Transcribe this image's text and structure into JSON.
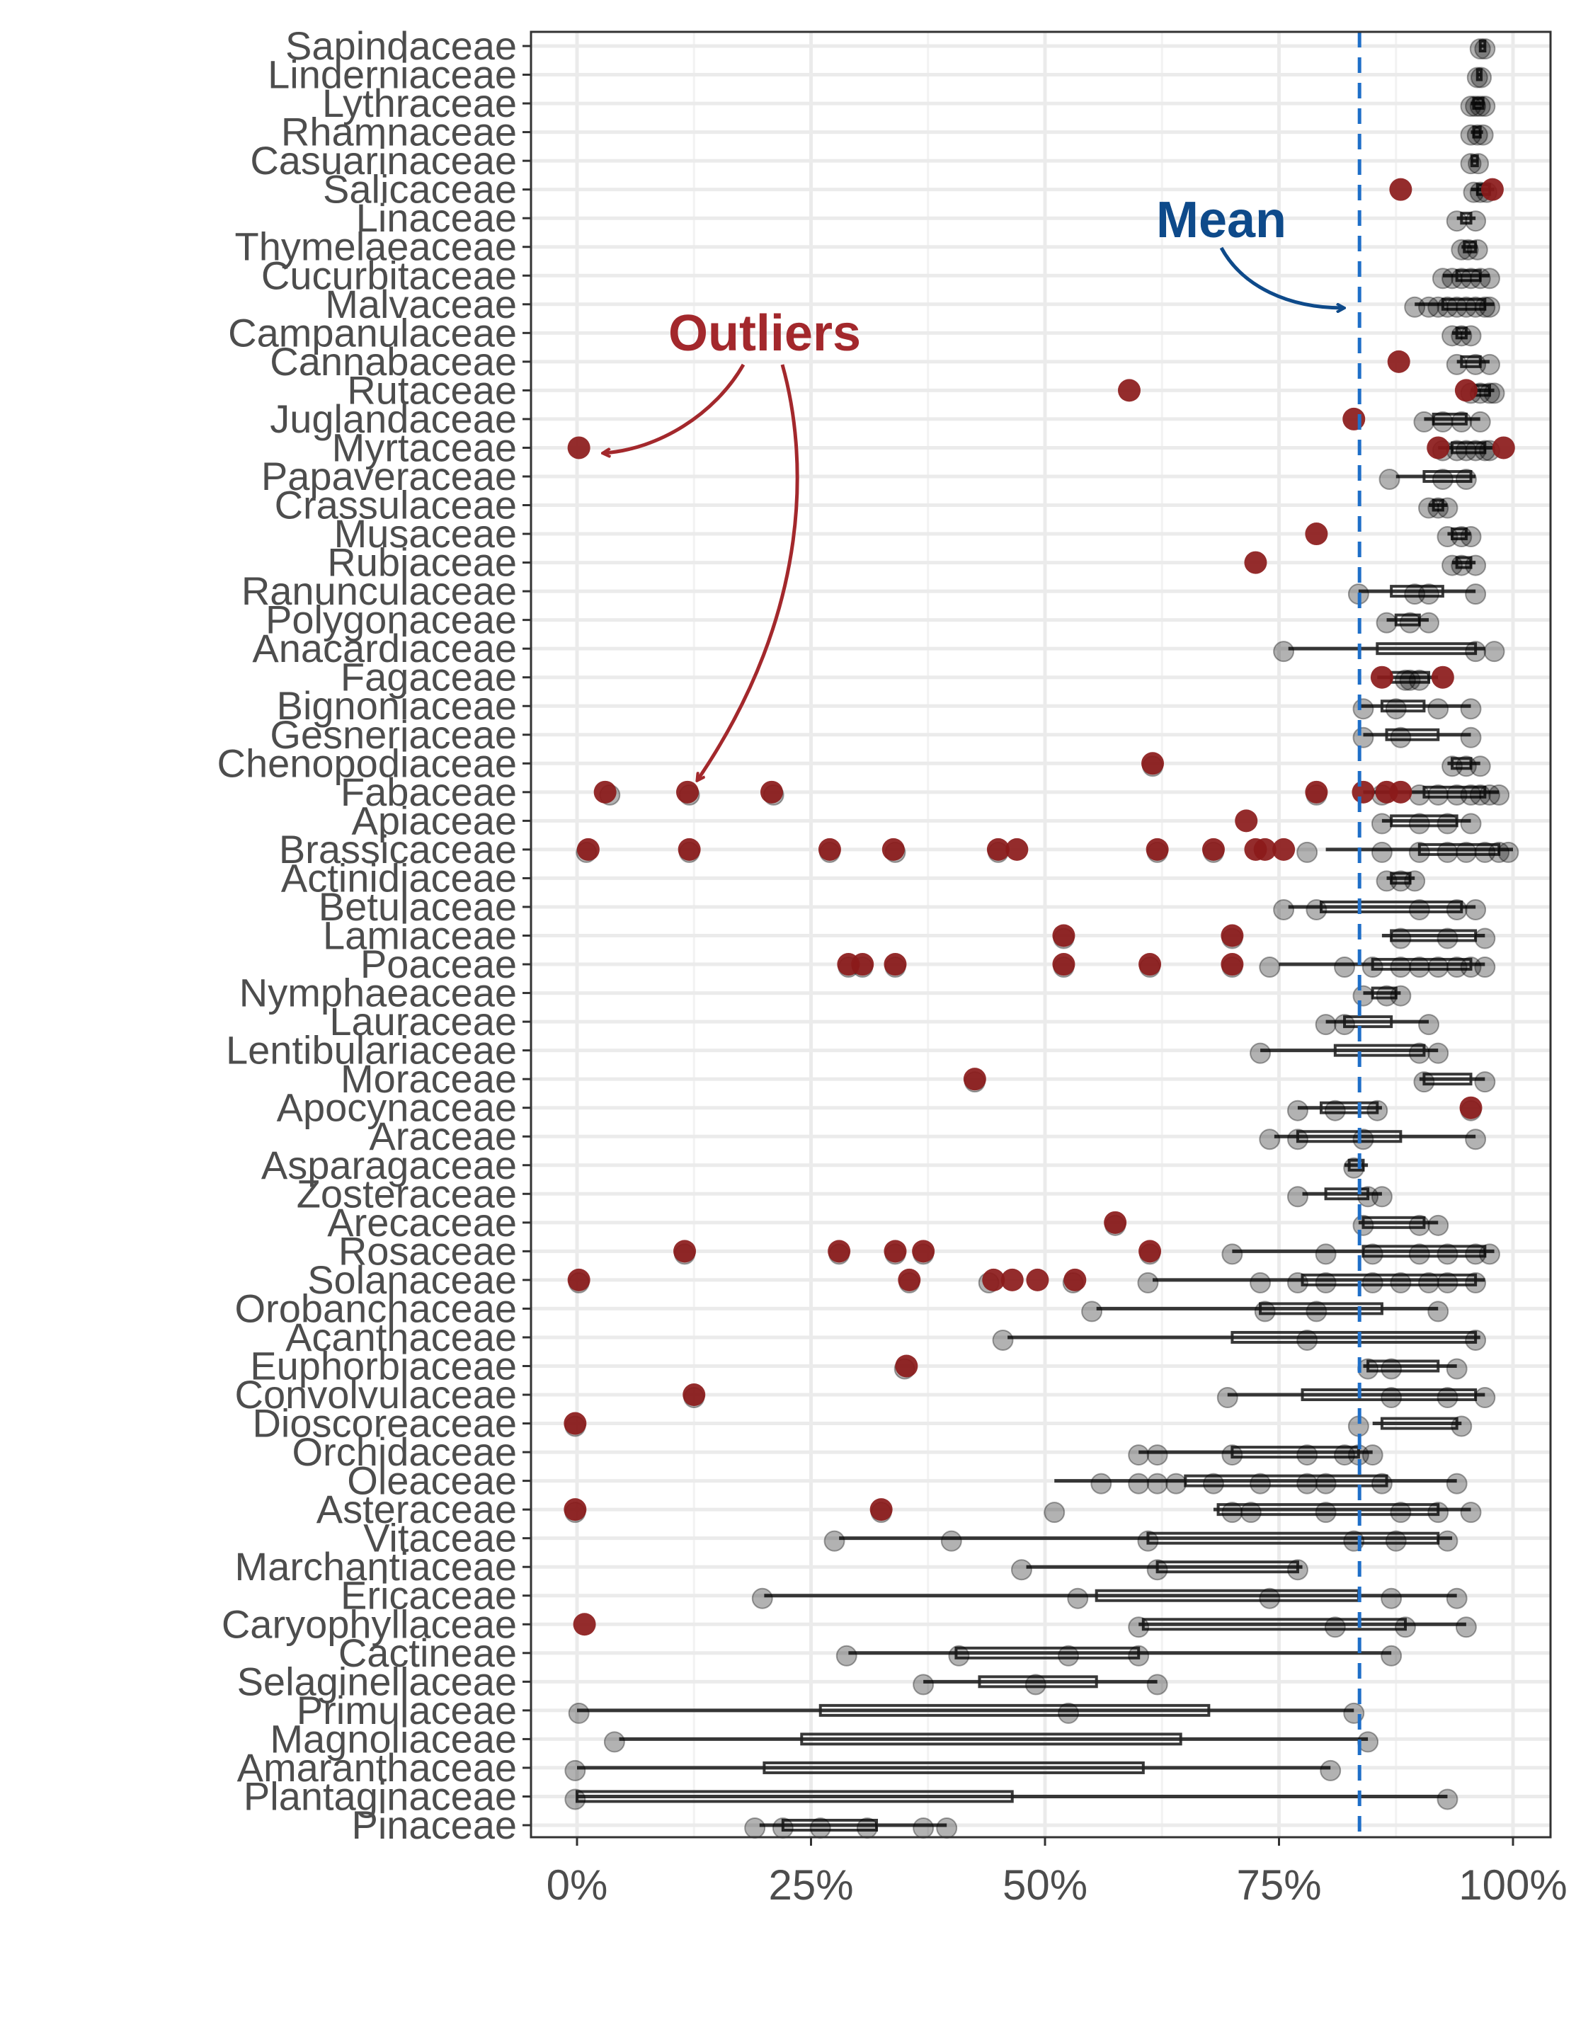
{
  "chart_data": {
    "type": "scatter",
    "orientation": "horizontal",
    "title": "",
    "xlabel": "",
    "ylabel": "",
    "xlim": [
      -0.05,
      1.04
    ],
    "x_ticks": [
      0,
      0.25,
      0.5,
      0.75,
      1.0
    ],
    "x_tick_labels": [
      "0%",
      "25%",
      "50%",
      "75%",
      "100%"
    ],
    "grid": true,
    "mean": 0.836,
    "colors": {
      "point": "#000000",
      "outlier": "#8b1a1a",
      "mean_line": "#1f6fc8",
      "outlier_annotation": "#a3282c",
      "mean_annotation": "#0e4a8a"
    },
    "annotations": [
      {
        "text": "Outliers",
        "color": "#a3282c"
      },
      {
        "text": "Mean",
        "color": "#0e4a8a"
      }
    ],
    "families": [
      {
        "name": "Sapindaceae",
        "min": 0.965,
        "q1": 0.965,
        "q3": 0.97,
        "max": 0.97,
        "points": [
          0.965,
          0.97
        ],
        "outliers": []
      },
      {
        "name": "Linderniaceae",
        "min": 0.962,
        "q1": 0.962,
        "q3": 0.966,
        "max": 0.966,
        "points": [
          0.962,
          0.966
        ],
        "outliers": []
      },
      {
        "name": "Lythraceae",
        "min": 0.955,
        "q1": 0.958,
        "q3": 0.968,
        "max": 0.97,
        "points": [
          0.955,
          0.96,
          0.965,
          0.97
        ],
        "outliers": []
      },
      {
        "name": "Rhamnaceae",
        "min": 0.955,
        "q1": 0.958,
        "q3": 0.965,
        "max": 0.968,
        "points": [
          0.955,
          0.962,
          0.968
        ],
        "outliers": []
      },
      {
        "name": "Casuarinaceae",
        "min": 0.955,
        "q1": 0.956,
        "q3": 0.962,
        "max": 0.963,
        "points": [
          0.955,
          0.963
        ],
        "outliers": []
      },
      {
        "name": "Salicaceae",
        "min": 0.955,
        "q1": 0.962,
        "q3": 0.975,
        "max": 0.98,
        "points": [
          0.958,
          0.965,
          0.972
        ],
        "outliers": [
          0.88,
          0.978
        ]
      },
      {
        "name": "Linaceae",
        "min": 0.94,
        "q1": 0.945,
        "q3": 0.955,
        "max": 0.96,
        "points": [
          0.94,
          0.96
        ],
        "outliers": []
      },
      {
        "name": "Thymelaeaceae",
        "min": 0.945,
        "q1": 0.948,
        "q3": 0.96,
        "max": 0.962,
        "points": [
          0.945,
          0.952,
          0.962
        ],
        "outliers": []
      },
      {
        "name": "Cucurbitaceae",
        "min": 0.925,
        "q1": 0.94,
        "q3": 0.965,
        "max": 0.975,
        "points": [
          0.925,
          0.935,
          0.945,
          0.955,
          0.965,
          0.975
        ],
        "outliers": []
      },
      {
        "name": "Malvaceae",
        "min": 0.895,
        "q1": 0.925,
        "q3": 0.97,
        "max": 0.98,
        "points": [
          0.895,
          0.91,
          0.92,
          0.93,
          0.94,
          0.95,
          0.96,
          0.97,
          0.975
        ],
        "outliers": []
      },
      {
        "name": "Campanulaceae",
        "min": 0.935,
        "q1": 0.94,
        "q3": 0.95,
        "max": 0.955,
        "points": [
          0.935,
          0.945,
          0.955
        ],
        "outliers": []
      },
      {
        "name": "Cannabaceae",
        "min": 0.94,
        "q1": 0.945,
        "q3": 0.965,
        "max": 0.975,
        "points": [
          0.94,
          0.96,
          0.975
        ],
        "outliers": [
          0.878
        ]
      },
      {
        "name": "Rutaceae",
        "min": 0.955,
        "q1": 0.96,
        "q3": 0.975,
        "max": 0.98,
        "points": [
          0.955,
          0.965,
          0.975,
          0.98
        ],
        "outliers": [
          0.59,
          0.95
        ]
      },
      {
        "name": "Juglandaceae",
        "min": 0.905,
        "q1": 0.915,
        "q3": 0.95,
        "max": 0.965,
        "points": [
          0.905,
          0.925,
          0.945,
          0.965
        ],
        "outliers": [
          0.83
        ]
      },
      {
        "name": "Myrtaceae",
        "min": 0.92,
        "q1": 0.935,
        "q3": 0.97,
        "max": 0.98,
        "points": [
          0.925,
          0.94,
          0.95,
          0.96,
          0.97,
          0.975
        ],
        "outliers": [
          0.002,
          0.92,
          0.99
        ]
      },
      {
        "name": "Papaveraceae",
        "min": 0.875,
        "q1": 0.905,
        "q3": 0.955,
        "max": 0.96,
        "points": [
          0.868,
          0.925,
          0.95
        ],
        "outliers": []
      },
      {
        "name": "Crassulaceae",
        "min": 0.91,
        "q1": 0.915,
        "q3": 0.925,
        "max": 0.93,
        "points": [
          0.91,
          0.92,
          0.93
        ],
        "outliers": []
      },
      {
        "name": "Musaceae",
        "min": 0.93,
        "q1": 0.935,
        "q3": 0.95,
        "max": 0.955,
        "points": [
          0.93,
          0.945,
          0.955
        ],
        "outliers": [
          0.79
        ]
      },
      {
        "name": "Rubiaceae",
        "min": 0.935,
        "q1": 0.94,
        "q3": 0.955,
        "max": 0.96,
        "points": [
          0.935,
          0.945,
          0.96
        ],
        "outliers": [
          0.725
        ]
      },
      {
        "name": "Ranunculaceae",
        "min": 0.835,
        "q1": 0.87,
        "q3": 0.925,
        "max": 0.96,
        "points": [
          0.835,
          0.895,
          0.91,
          0.96
        ],
        "outliers": []
      },
      {
        "name": "Polygonaceae",
        "min": 0.865,
        "q1": 0.875,
        "q3": 0.9,
        "max": 0.91,
        "points": [
          0.865,
          0.89,
          0.91
        ],
        "outliers": []
      },
      {
        "name": "Anacardiaceae",
        "min": 0.76,
        "q1": 0.855,
        "q3": 0.96,
        "max": 0.97,
        "points": [
          0.755,
          0.96,
          0.98
        ],
        "outliers": []
      },
      {
        "name": "Fagaceae",
        "min": 0.855,
        "q1": 0.87,
        "q3": 0.91,
        "max": 0.92,
        "points": [
          0.885,
          0.89,
          0.9
        ],
        "outliers": [
          0.86,
          0.925
        ]
      },
      {
        "name": "Bignoniaceae",
        "min": 0.835,
        "q1": 0.86,
        "q3": 0.905,
        "max": 0.955,
        "points": [
          0.84,
          0.875,
          0.92,
          0.955
        ],
        "outliers": []
      },
      {
        "name": "Gesneriaceae",
        "min": 0.84,
        "q1": 0.865,
        "q3": 0.92,
        "max": 0.955,
        "points": [
          0.84,
          0.88,
          0.955
        ],
        "outliers": []
      },
      {
        "name": "Chenopodiaceae",
        "min": 0.93,
        "q1": 0.935,
        "q3": 0.955,
        "max": 0.965,
        "points": [
          0.615,
          0.935,
          0.95,
          0.965
        ],
        "outliers": [
          0.615
        ]
      },
      {
        "name": "Fabaceae",
        "min": 0.84,
        "q1": 0.905,
        "q3": 0.97,
        "max": 0.985,
        "points": [
          0.035,
          0.12,
          0.21,
          0.79,
          0.86,
          0.9,
          0.92,
          0.94,
          0.955,
          0.965,
          0.975,
          0.985
        ],
        "outliers": [
          0.03,
          0.118,
          0.208,
          0.79,
          0.84,
          0.865,
          0.88
        ]
      },
      {
        "name": "Apiaceae",
        "min": 0.86,
        "q1": 0.87,
        "q3": 0.94,
        "max": 0.955,
        "points": [
          0.86,
          0.9,
          0.93,
          0.955
        ],
        "outliers": [
          0.715
        ]
      },
      {
        "name": "Brassicaceae",
        "min": 0.8,
        "q1": 0.9,
        "q3": 0.985,
        "max": 1.0,
        "points": [
          0.01,
          0.12,
          0.27,
          0.34,
          0.45,
          0.62,
          0.68,
          0.78,
          0.86,
          0.9,
          0.93,
          0.95,
          0.97,
          0.985,
          0.995
        ],
        "outliers": [
          0.012,
          0.12,
          0.27,
          0.338,
          0.45,
          0.47,
          0.62,
          0.68,
          0.725,
          0.735,
          0.755
        ]
      },
      {
        "name": "Actinidiaceae",
        "min": 0.865,
        "q1": 0.87,
        "q3": 0.89,
        "max": 0.895,
        "points": [
          0.865,
          0.88,
          0.895
        ],
        "outliers": []
      },
      {
        "name": "Betulaceae",
        "min": 0.76,
        "q1": 0.795,
        "q3": 0.945,
        "max": 0.96,
        "points": [
          0.755,
          0.79,
          0.9,
          0.94,
          0.96
        ],
        "outliers": []
      },
      {
        "name": "Lamiaceae",
        "min": 0.86,
        "q1": 0.87,
        "q3": 0.96,
        "max": 0.97,
        "points": [
          0.52,
          0.7,
          0.88,
          0.93,
          0.97
        ],
        "outliers": [
          0.52,
          0.7
        ]
      },
      {
        "name": "Poaceae",
        "min": 0.75,
        "q1": 0.85,
        "q3": 0.955,
        "max": 0.97,
        "points": [
          0.29,
          0.305,
          0.34,
          0.52,
          0.612,
          0.7,
          0.74,
          0.82,
          0.85,
          0.88,
          0.9,
          0.92,
          0.94,
          0.955,
          0.97
        ],
        "outliers": [
          0.29,
          0.305,
          0.34,
          0.52,
          0.612,
          0.7
        ]
      },
      {
        "name": "Nymphaeaceae",
        "min": 0.84,
        "q1": 0.85,
        "q3": 0.875,
        "max": 0.88,
        "points": [
          0.84,
          0.865,
          0.88
        ],
        "outliers": []
      },
      {
        "name": "Lauraceae",
        "min": 0.8,
        "q1": 0.82,
        "q3": 0.87,
        "max": 0.91,
        "points": [
          0.8,
          0.82,
          0.91
        ],
        "outliers": []
      },
      {
        "name": "Lentibulariaceae",
        "min": 0.73,
        "q1": 0.81,
        "q3": 0.905,
        "max": 0.92,
        "points": [
          0.73,
          0.9,
          0.92
        ],
        "outliers": []
      },
      {
        "name": "Moraceae",
        "min": 0.9,
        "q1": 0.905,
        "q3": 0.955,
        "max": 0.97,
        "points": [
          0.425,
          0.905,
          0.97
        ],
        "outliers": [
          0.425
        ]
      },
      {
        "name": "Apocynaceae",
        "min": 0.77,
        "q1": 0.795,
        "q3": 0.855,
        "max": 0.86,
        "points": [
          0.77,
          0.81,
          0.855,
          0.955
        ],
        "outliers": [
          0.955
        ]
      },
      {
        "name": "Araceae",
        "min": 0.745,
        "q1": 0.77,
        "q3": 0.88,
        "max": 0.96,
        "points": [
          0.74,
          0.77,
          0.84,
          0.96
        ],
        "outliers": []
      },
      {
        "name": "Asparagaceae",
        "min": 0.82,
        "q1": 0.825,
        "q3": 0.84,
        "max": 0.845,
        "points": [
          0.83
        ],
        "outliers": []
      },
      {
        "name": "Zosteraceae",
        "min": 0.775,
        "q1": 0.8,
        "q3": 0.845,
        "max": 0.86,
        "points": [
          0.77,
          0.845,
          0.86
        ],
        "outliers": []
      },
      {
        "name": "Arecaceae",
        "min": 0.835,
        "q1": 0.84,
        "q3": 0.905,
        "max": 0.92,
        "points": [
          0.575,
          0.84,
          0.9,
          0.92
        ],
        "outliers": [
          0.575
        ]
      },
      {
        "name": "Rosaceae",
        "min": 0.7,
        "q1": 0.84,
        "q3": 0.97,
        "max": 0.98,
        "points": [
          0.115,
          0.28,
          0.34,
          0.37,
          0.612,
          0.7,
          0.8,
          0.85,
          0.9,
          0.93,
          0.96,
          0.975
        ],
        "outliers": [
          0.115,
          0.28,
          0.34,
          0.37,
          0.612
        ]
      },
      {
        "name": "Solanaceae",
        "min": 0.615,
        "q1": 0.775,
        "q3": 0.96,
        "max": 0.97,
        "points": [
          0.002,
          0.355,
          0.44,
          0.53,
          0.61,
          0.73,
          0.77,
          0.8,
          0.85,
          0.88,
          0.91,
          0.93,
          0.96
        ],
        "outliers": [
          0.002,
          0.355,
          0.445,
          0.465,
          0.492,
          0.532
        ]
      },
      {
        "name": "Orobanchaceae",
        "min": 0.555,
        "q1": 0.73,
        "q3": 0.86,
        "max": 0.92,
        "points": [
          0.55,
          0.735,
          0.79,
          0.92
        ],
        "outliers": []
      },
      {
        "name": "Acanthaceae",
        "min": 0.46,
        "q1": 0.7,
        "q3": 0.96,
        "max": 0.965,
        "points": [
          0.455,
          0.78,
          0.96
        ],
        "outliers": []
      },
      {
        "name": "Euphorbiaceae",
        "min": 0.84,
        "q1": 0.845,
        "q3": 0.92,
        "max": 0.94,
        "points": [
          0.35,
          0.845,
          0.87,
          0.94
        ],
        "outliers": [
          0.352
        ]
      },
      {
        "name": "Convolvulaceae",
        "min": 0.695,
        "q1": 0.775,
        "q3": 0.96,
        "max": 0.97,
        "points": [
          0.125,
          0.695,
          0.87,
          0.93,
          0.97
        ],
        "outliers": [
          0.125
        ]
      },
      {
        "name": "Dioscoreaceae",
        "min": 0.85,
        "q1": 0.86,
        "q3": 0.94,
        "max": 0.945,
        "points": [
          -0.002,
          0.835,
          0.945
        ],
        "outliers": [
          -0.002
        ]
      },
      {
        "name": "Orchidaceae",
        "min": 0.6,
        "q1": 0.7,
        "q3": 0.835,
        "max": 0.85,
        "points": [
          0.6,
          0.62,
          0.7,
          0.78,
          0.82,
          0.835,
          0.85
        ],
        "outliers": []
      },
      {
        "name": "Oleaceae",
        "min": 0.51,
        "q1": 0.65,
        "q3": 0.865,
        "max": 0.94,
        "points": [
          0.56,
          0.6,
          0.62,
          0.64,
          0.68,
          0.73,
          0.78,
          0.8,
          0.86,
          0.94
        ],
        "outliers": []
      },
      {
        "name": "Asteraceae",
        "min": 0.68,
        "q1": 0.685,
        "q3": 0.92,
        "max": 0.955,
        "points": [
          -0.002,
          0.325,
          0.51,
          0.7,
          0.72,
          0.8,
          0.88,
          0.92,
          0.955
        ],
        "outliers": [
          -0.002,
          0.325
        ]
      },
      {
        "name": "Vitaceae",
        "min": 0.28,
        "q1": 0.61,
        "q3": 0.92,
        "max": 0.935,
        "points": [
          0.275,
          0.4,
          0.61,
          0.83,
          0.875,
          0.93
        ],
        "outliers": []
      },
      {
        "name": "Marchantiaceae",
        "min": 0.48,
        "q1": 0.62,
        "q3": 0.77,
        "max": 0.775,
        "points": [
          0.475,
          0.62,
          0.77
        ],
        "outliers": []
      },
      {
        "name": "Ericaceae",
        "min": 0.2,
        "q1": 0.555,
        "q3": 0.835,
        "max": 0.94,
        "points": [
          0.198,
          0.535,
          0.74,
          0.87,
          0.94
        ],
        "outliers": []
      },
      {
        "name": "Caryophyllaceae",
        "min": 0.6,
        "q1": 0.605,
        "q3": 0.885,
        "max": 0.95,
        "points": [
          0.6,
          0.81,
          0.885,
          0.95
        ],
        "outliers": [
          0.008
        ]
      },
      {
        "name": "Cactineae",
        "min": 0.29,
        "q1": 0.405,
        "q3": 0.6,
        "max": 0.87,
        "points": [
          0.288,
          0.408,
          0.525,
          0.6,
          0.87
        ],
        "outliers": []
      },
      {
        "name": "Selaginellaceae",
        "min": 0.37,
        "q1": 0.43,
        "q3": 0.555,
        "max": 0.62,
        "points": [
          0.37,
          0.49,
          0.62
        ],
        "outliers": []
      },
      {
        "name": "Primulaceae",
        "min": 0.0,
        "q1": 0.26,
        "q3": 0.675,
        "max": 0.83,
        "points": [
          0.002,
          0.525,
          0.83
        ],
        "outliers": []
      },
      {
        "name": "Magnoliaceae",
        "min": 0.045,
        "q1": 0.24,
        "q3": 0.645,
        "max": 0.845,
        "points": [
          0.04,
          0.845
        ],
        "outliers": []
      },
      {
        "name": "Amaranthaceae",
        "min": 0.0,
        "q1": 0.2,
        "q3": 0.605,
        "max": 0.805,
        "points": [
          -0.002,
          0.805
        ],
        "outliers": []
      },
      {
        "name": "Plantaginaceae",
        "min": 0.0,
        "q1": 0.0,
        "q3": 0.465,
        "max": 0.93,
        "points": [
          -0.002,
          0.93
        ],
        "outliers": []
      },
      {
        "name": "Pinaceae",
        "min": 0.195,
        "q1": 0.22,
        "q3": 0.32,
        "max": 0.395,
        "points": [
          0.19,
          0.22,
          0.26,
          0.31,
          0.37,
          0.395
        ],
        "outliers": []
      }
    ]
  }
}
